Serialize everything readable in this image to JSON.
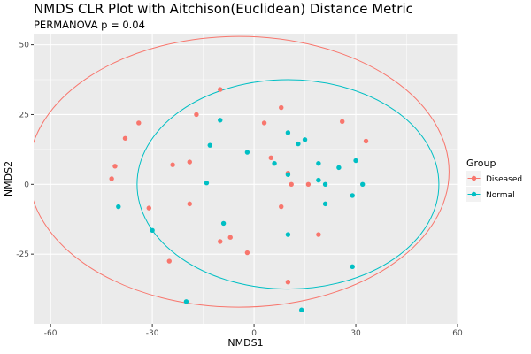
{
  "chart_data": {
    "type": "scatter",
    "title": "NMDS CLR Plot with Aitchison(Euclidean) Distance Metric",
    "subtitle": "PERMANOVA p = 0.04",
    "xlabel": "NMDS1",
    "ylabel": "NMDS2",
    "xlim": [
      -65,
      60
    ],
    "ylim": [
      -50,
      54
    ],
    "x_ticks": [
      -60,
      -30,
      0,
      30,
      60
    ],
    "x_tick_labels": [
      "-60",
      "-30",
      "0",
      "30",
      "60"
    ],
    "y_ticks": [
      -25,
      0,
      25,
      50
    ],
    "y_tick_labels": [
      "-25",
      "0",
      "25",
      "50"
    ],
    "grid": true,
    "legend_title": "Group",
    "legend_position": "right",
    "series": [
      {
        "name": "Diseased",
        "color": "#F8766D",
        "points": [
          [
            -10,
            34
          ],
          [
            8,
            27.5
          ],
          [
            -17,
            25
          ],
          [
            26,
            22.5
          ],
          [
            3,
            22
          ],
          [
            -34,
            22
          ],
          [
            -38,
            16.5
          ],
          [
            33,
            15.5
          ],
          [
            5,
            9.5
          ],
          [
            -19,
            8
          ],
          [
            -24,
            7
          ],
          [
            -41,
            6.5
          ],
          [
            10,
            4
          ],
          [
            -42,
            2
          ],
          [
            11,
            0
          ],
          [
            16,
            0
          ],
          [
            -19,
            -7
          ],
          [
            -31,
            -8.5
          ],
          [
            8,
            -8
          ],
          [
            19,
            -18
          ],
          [
            -7,
            -19
          ],
          [
            -10,
            -20.5
          ],
          [
            -2,
            -24.5
          ],
          [
            -25,
            -27.5
          ],
          [
            10,
            -35
          ]
        ]
      },
      {
        "name": "Normal",
        "color": "#00BFC4",
        "points": [
          [
            -10,
            23
          ],
          [
            10,
            18.5
          ],
          [
            15,
            16
          ],
          [
            13,
            14.5
          ],
          [
            -13,
            14
          ],
          [
            -2,
            11.5
          ],
          [
            30,
            8.5
          ],
          [
            6,
            7.5
          ],
          [
            19,
            7.5
          ],
          [
            25,
            6
          ],
          [
            10,
            3.5
          ],
          [
            19,
            1.5
          ],
          [
            -14,
            0.5
          ],
          [
            21,
            0
          ],
          [
            32,
            0
          ],
          [
            29,
            -4
          ],
          [
            21,
            -7
          ],
          [
            -40,
            -8
          ],
          [
            -9,
            -14
          ],
          [
            -30,
            -16.5
          ],
          [
            10,
            -18
          ],
          [
            29,
            -29.5
          ],
          [
            -20,
            -42
          ],
          [
            14,
            -45
          ]
        ]
      }
    ],
    "ellipses": [
      {
        "series": "Diseased",
        "cx": -4.5,
        "cy": 4.5,
        "rx": 62,
        "ry": 48.5
      },
      {
        "series": "Normal",
        "cx": 10,
        "cy": 0,
        "rx": 44.5,
        "ry": 37.5
      }
    ]
  }
}
